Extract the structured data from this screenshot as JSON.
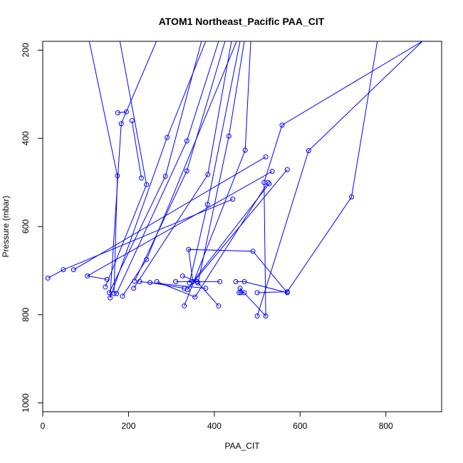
{
  "chart_data": {
    "type": "line",
    "title": "ATOM1 Northeast_Pacific PAA_CIT",
    "xlabel": "PAA_CIT",
    "ylabel": "Pressure (mbar)",
    "xlim": [
      0,
      930
    ],
    "ylim": [
      1020,
      180
    ],
    "y_reversed": true,
    "x_ticks": [
      0,
      200,
      400,
      600,
      800
    ],
    "y_ticks": [
      200,
      400,
      600,
      800,
      1000
    ],
    "series_color": "#0000FF",
    "marker": "open-circle",
    "profiles": [
      {
        "points": [
          [
            100,
            140
          ],
          [
            174,
            485
          ],
          [
            166,
            752
          ]
        ]
      },
      {
        "points": [
          [
            180,
            180
          ],
          [
            242,
            505
          ],
          [
            146,
            737
          ]
        ]
      },
      {
        "points": [
          [
            265,
            180
          ],
          [
            183,
            367
          ],
          [
            157,
            762
          ],
          [
            290,
            398
          ],
          [
            380,
            180
          ]
        ]
      },
      {
        "points": [
          [
            370,
            180
          ],
          [
            286,
            486
          ],
          [
            155,
            750
          ]
        ]
      },
      {
        "points": [
          [
            410,
            180
          ],
          [
            336,
            406
          ],
          [
            172,
            752
          ]
        ]
      },
      {
        "points": [
          [
            425,
            180
          ],
          [
            336,
            474
          ],
          [
            214,
            724
          ]
        ]
      },
      {
        "points": [
          [
            440,
            180
          ],
          [
            385,
            482
          ],
          [
            212,
            740
          ]
        ]
      },
      {
        "points": [
          [
            452,
            180
          ],
          [
            242,
            675
          ],
          [
            186,
            758
          ]
        ]
      },
      {
        "points": [
          [
            460,
            180
          ],
          [
            384,
            550
          ],
          [
            342,
            728
          ]
        ]
      },
      {
        "points": [
          [
            470,
            180
          ],
          [
            434,
            395
          ],
          [
            362,
            728
          ],
          [
            410,
            780
          ]
        ]
      },
      {
        "points": [
          [
            485,
            180
          ],
          [
            472,
            427
          ],
          [
            330,
            780
          ]
        ]
      },
      {
        "points": [
          [
            780,
            180
          ],
          [
            720,
            533
          ],
          [
            570,
            748
          ],
          [
            500,
            750
          ]
        ]
      },
      {
        "points": [
          [
            885,
            180
          ],
          [
            620,
            428
          ],
          [
            500,
            803
          ]
        ]
      },
      {
        "points": [
          [
            885,
            180
          ],
          [
            558,
            370
          ],
          [
            516,
            500
          ],
          [
            520,
            803
          ],
          [
            460,
            740
          ],
          [
            462,
            750
          ]
        ]
      },
      {
        "points": [
          [
            12,
            717
          ],
          [
            48,
            698
          ],
          [
            443,
            538
          ]
        ]
      },
      {
        "points": [
          [
            520,
            442
          ],
          [
            72,
            698
          ]
        ]
      },
      {
        "points": [
          [
            535,
            475
          ],
          [
            104,
            712
          ],
          [
            150,
            720
          ]
        ]
      },
      {
        "points": [
          [
            570,
            471
          ],
          [
            337,
            743
          ]
        ]
      },
      {
        "points": [
          [
            528,
            503
          ],
          [
            350,
            725
          ],
          [
            340,
            652
          ],
          [
            490,
            656
          ],
          [
            570,
            750
          ],
          [
            470,
            725
          ],
          [
            450,
            725
          ]
        ]
      },
      {
        "points": [
          [
            525,
            500
          ],
          [
            355,
            760
          ],
          [
            266,
            725
          ]
        ]
      },
      {
        "points": [
          [
            380,
            740
          ],
          [
            226,
            725
          ]
        ]
      },
      {
        "points": [
          [
            310,
            725
          ],
          [
            413,
            725
          ]
        ]
      },
      {
        "points": [
          [
            195,
            340
          ],
          [
            175,
            342
          ]
        ]
      },
      {
        "points": [
          [
            230,
            490
          ],
          [
            208,
            360
          ]
        ]
      },
      {
        "points": [
          [
            470,
            750
          ],
          [
            458,
            750
          ]
        ]
      },
      {
        "points": [
          [
            326,
            712
          ],
          [
            360,
            725
          ]
        ]
      },
      {
        "points": [
          [
            250,
            727
          ],
          [
            330,
            740
          ]
        ]
      }
    ]
  }
}
